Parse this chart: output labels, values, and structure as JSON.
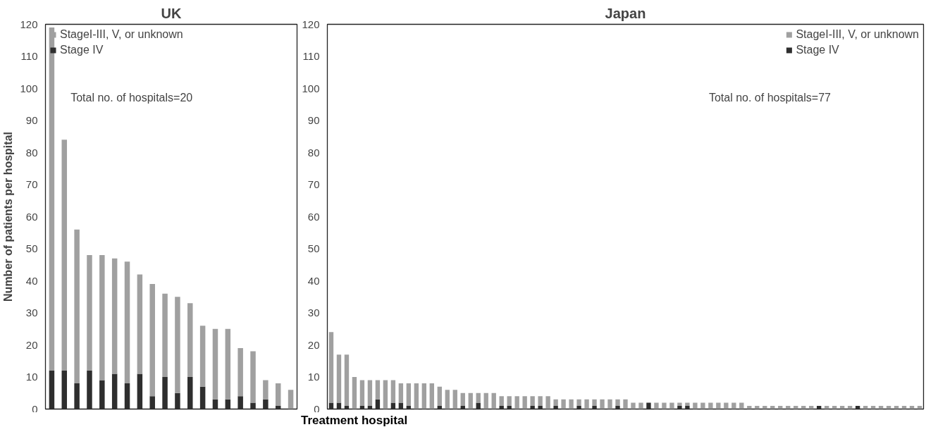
{
  "chart_data": [
    {
      "type": "bar",
      "title": "UK",
      "ylabel": "Number of patients per hospital",
      "stacked": true,
      "categories": [
        null,
        null,
        null,
        null,
        null,
        null,
        null,
        null,
        null,
        null,
        null,
        null,
        null,
        null,
        null,
        null,
        null,
        null,
        null,
        null
      ],
      "series": [
        {
          "name": "Stage IV",
          "color": "#2e2e2e",
          "values": [
            12,
            12,
            8,
            12,
            9,
            11,
            8,
            11,
            4,
            10,
            5,
            10,
            7,
            3,
            3,
            4,
            2,
            3,
            1,
            0
          ]
        },
        {
          "name": "StageI-III, V, or unknown",
          "color": "#a0a0a0",
          "values": [
            107,
            72,
            48,
            36,
            39,
            36,
            38,
            31,
            35,
            26,
            30,
            23,
            19,
            22,
            22,
            15,
            16,
            6,
            7,
            6
          ]
        }
      ],
      "ylim": [
        0,
        120
      ],
      "yticks": [
        0,
        10,
        20,
        30,
        40,
        50,
        60,
        70,
        80,
        90,
        100,
        110,
        120
      ],
      "tick_labels": "y",
      "legend": "top left",
      "annotations": [
        "Total no. of hospitals=20"
      ]
    },
    {
      "type": "bar",
      "title": "Japan",
      "xlabel": "Treatment hospital",
      "stacked": true,
      "categories": [
        null,
        null,
        null,
        null,
        null,
        null,
        null,
        null,
        null,
        null,
        null,
        null,
        null,
        null,
        null,
        null,
        null,
        null,
        null,
        null,
        null,
        null,
        null,
        null,
        null,
        null,
        null,
        null,
        null,
        null,
        null,
        null,
        null,
        null,
        null,
        null,
        null,
        null,
        null,
        null,
        null,
        null,
        null,
        null,
        null,
        null,
        null,
        null,
        null,
        null,
        null,
        null,
        null,
        null,
        null,
        null,
        null,
        null,
        null,
        null,
        null,
        null,
        null,
        null,
        null,
        null,
        null,
        null,
        null,
        null,
        null,
        null,
        null,
        null,
        null,
        null,
        null
      ],
      "series": [
        {
          "name": "Stage IV",
          "color": "#2e2e2e",
          "values": [
            2,
            2,
            1,
            0,
            1,
            1,
            3,
            0,
            2,
            2,
            1,
            0,
            0,
            0,
            1,
            0,
            0,
            1,
            0,
            2,
            0,
            0,
            1,
            1,
            0,
            0,
            1,
            1,
            0,
            1,
            0,
            0,
            1,
            0,
            1,
            0,
            0,
            1,
            0,
            0,
            0,
            2,
            0,
            0,
            0,
            1,
            1,
            0,
            0,
            0,
            0,
            0,
            0,
            0,
            0,
            0,
            0,
            0,
            0,
            0,
            0,
            0,
            0,
            1,
            0,
            0,
            0,
            0,
            1,
            0,
            0,
            0,
            0,
            0,
            0,
            0,
            0
          ]
        },
        {
          "name": "StageI-III, V, or unknown",
          "color": "#a0a0a0",
          "values": [
            22,
            15,
            16,
            10,
            8,
            8,
            6,
            9,
            7,
            6,
            7,
            8,
            8,
            8,
            6,
            6,
            6,
            4,
            5,
            3,
            5,
            5,
            3,
            3,
            4,
            4,
            3,
            3,
            4,
            2,
            3,
            3,
            2,
            3,
            2,
            3,
            3,
            2,
            3,
            2,
            2,
            0,
            2,
            2,
            2,
            1,
            1,
            2,
            2,
            2,
            2,
            2,
            2,
            2,
            1,
            1,
            1,
            1,
            1,
            1,
            1,
            1,
            1,
            0,
            1,
            1,
            1,
            1,
            0,
            1,
            1,
            1,
            1,
            1,
            1,
            1,
            1
          ]
        }
      ],
      "ylim": [
        0,
        120
      ],
      "yticks": [
        0,
        10,
        20,
        30,
        40,
        50,
        60,
        70,
        80,
        90,
        100,
        110,
        120
      ],
      "tick_labels": "y",
      "legend": "top right",
      "annotations": [
        "Total no. of hospitals=77"
      ]
    }
  ]
}
